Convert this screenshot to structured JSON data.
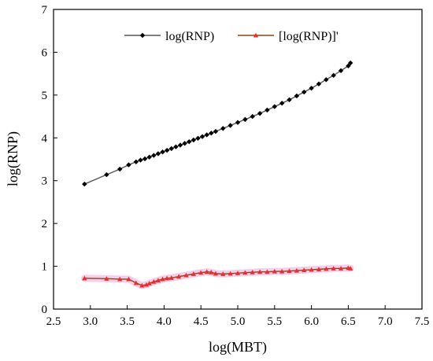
{
  "chart_data": {
    "type": "line",
    "title": "",
    "xlabel": "log(MBT)",
    "ylabel": "log(RNP)",
    "xlim": [
      2.5,
      7.5
    ],
    "ylim": [
      0,
      7
    ],
    "xticks": [
      "2.5",
      "3.0",
      "3.5",
      "4.0",
      "4.5",
      "5.0",
      "5.5",
      "6.0",
      "6.5",
      "7.0",
      "7.5"
    ],
    "yticks": [
      "0",
      "1",
      "2",
      "3",
      "4",
      "5",
      "6",
      "7"
    ],
    "grid": false,
    "legend_position": "top-center",
    "series": [
      {
        "name": "log(RNP)",
        "color": "#000000",
        "line_color": "#555555",
        "marker": "diamond",
        "x": [
          2.92,
          3.22,
          3.4,
          3.52,
          3.62,
          3.68,
          3.74,
          3.8,
          3.86,
          3.92,
          3.98,
          4.04,
          4.1,
          4.16,
          4.22,
          4.28,
          4.34,
          4.4,
          4.46,
          4.52,
          4.58,
          4.64,
          4.7,
          4.8,
          4.9,
          5.0,
          5.1,
          5.2,
          5.3,
          5.4,
          5.5,
          5.6,
          5.7,
          5.8,
          5.9,
          6.0,
          6.1,
          6.2,
          6.3,
          6.4,
          6.5,
          6.53
        ],
        "y": [
          2.92,
          3.14,
          3.27,
          3.37,
          3.44,
          3.48,
          3.51,
          3.55,
          3.59,
          3.63,
          3.67,
          3.71,
          3.75,
          3.79,
          3.83,
          3.87,
          3.91,
          3.95,
          3.99,
          4.03,
          4.07,
          4.11,
          4.15,
          4.22,
          4.29,
          4.36,
          4.43,
          4.5,
          4.57,
          4.65,
          4.73,
          4.81,
          4.89,
          4.98,
          5.07,
          5.16,
          5.26,
          5.36,
          5.46,
          5.57,
          5.68,
          5.75
        ]
      },
      {
        "name": "[log(RNP)]'",
        "color": "#e8302a",
        "line_color": "#8b4513",
        "marker": "triangle",
        "x": [
          2.92,
          3.22,
          3.4,
          3.52,
          3.62,
          3.7,
          3.76,
          3.8,
          3.86,
          3.92,
          3.98,
          4.04,
          4.1,
          4.2,
          4.3,
          4.4,
          4.5,
          4.58,
          4.64,
          4.7,
          4.8,
          4.9,
          5.0,
          5.1,
          5.2,
          5.3,
          5.4,
          5.5,
          5.6,
          5.7,
          5.8,
          5.9,
          6.0,
          6.1,
          6.2,
          6.3,
          6.4,
          6.5,
          6.53
        ],
        "y": [
          0.72,
          0.71,
          0.7,
          0.7,
          0.61,
          0.55,
          0.57,
          0.6,
          0.64,
          0.67,
          0.7,
          0.72,
          0.73,
          0.76,
          0.79,
          0.82,
          0.85,
          0.87,
          0.86,
          0.83,
          0.82,
          0.83,
          0.84,
          0.85,
          0.86,
          0.87,
          0.87,
          0.88,
          0.88,
          0.89,
          0.9,
          0.91,
          0.92,
          0.93,
          0.94,
          0.95,
          0.95,
          0.96,
          0.95
        ]
      }
    ]
  }
}
